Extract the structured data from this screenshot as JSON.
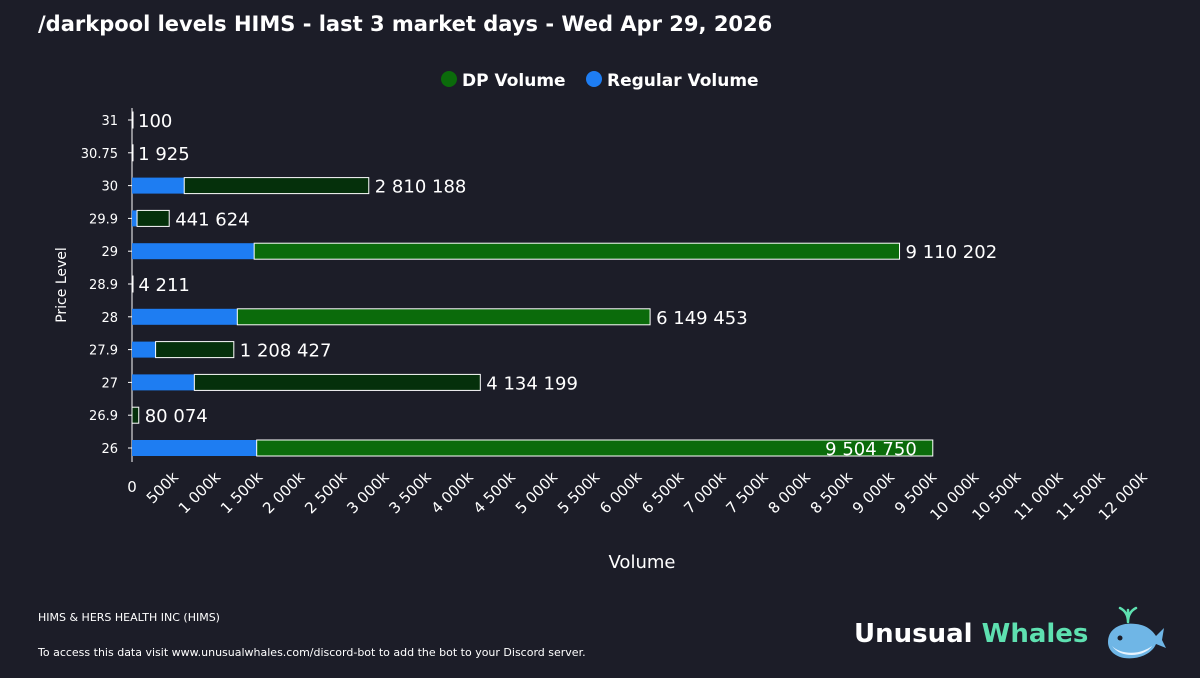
{
  "title": "/darkpool levels HIMS - last 3 market days - Wed Apr 29, 2026",
  "footer": {
    "company": "HIMS & HERS HEALTH INC (HIMS)",
    "note": "To access this data visit www.unusualwhales.com/discord-bot to add the bot to your Discord server."
  },
  "brand": {
    "word1": "Unusual",
    "word2": "Whales",
    "word2_color": "#5ee0b0",
    "icon": "whale-icon"
  },
  "colors": {
    "background": "#1c1d28",
    "dp_full": "#0b6b0b",
    "dp_dark": "#05300b",
    "regular": "#1e7df2",
    "dp_legend": "#0b6b0b",
    "regular_legend": "#1e7df2"
  },
  "chart_data": {
    "type": "bar",
    "orientation": "horizontal",
    "stacked": true,
    "xlabel": "Volume",
    "ylabel": "Price Level",
    "xlim": [
      0,
      12000000
    ],
    "x_ticks": [
      "0",
      "500k",
      "1 000k",
      "1 500k",
      "2 000k",
      "2 500k",
      "3 000k",
      "3 500k",
      "4 000k",
      "4 500k",
      "5 000k",
      "5 500k",
      "6 000k",
      "6 500k",
      "7 000k",
      "7 500k",
      "8 000k",
      "8 500k",
      "9 000k",
      "9 500k",
      "10 000k",
      "10 500k",
      "11 000k",
      "11 500k",
      "12 000k"
    ],
    "x_tick_values": [
      0,
      500000,
      1000000,
      1500000,
      2000000,
      2500000,
      3000000,
      3500000,
      4000000,
      4500000,
      5000000,
      5500000,
      6000000,
      6500000,
      7000000,
      7500000,
      8000000,
      8500000,
      9000000,
      9500000,
      10000000,
      10500000,
      11000000,
      11500000,
      12000000
    ],
    "legend": {
      "position": "top-center",
      "entries": [
        "DP Volume",
        "Regular Volume"
      ]
    },
    "categories": [
      "31",
      "30.75",
      "30",
      "29.9",
      "29",
      "28.9",
      "28",
      "27.9",
      "27",
      "26.9",
      "26"
    ],
    "series": [
      {
        "name": "Regular Volume",
        "values": [
          0,
          0,
          620000,
          60000,
          1450000,
          0,
          1250000,
          280000,
          740000,
          0,
          1480000
        ]
      },
      {
        "name": "DP Volume",
        "values": [
          100,
          1925,
          2190188,
          381624,
          7660202,
          4211,
          4899453,
          928427,
          3394199,
          80074,
          8024750
        ]
      }
    ],
    "totals": [
      "100",
      "1 925",
      "2 810 188",
      "441 624",
      "9 110 202",
      "4 211",
      "6 149 453",
      "1 208 427",
      "4 134 199",
      "80 074",
      "9 504 750"
    ],
    "dp_shade": [
      "dark",
      "dark",
      "dark",
      "dark",
      "full",
      "dark",
      "full",
      "dark",
      "dark",
      "dark",
      "full"
    ],
    "label_inside": [
      false,
      false,
      false,
      false,
      false,
      false,
      false,
      false,
      false,
      false,
      true
    ]
  }
}
